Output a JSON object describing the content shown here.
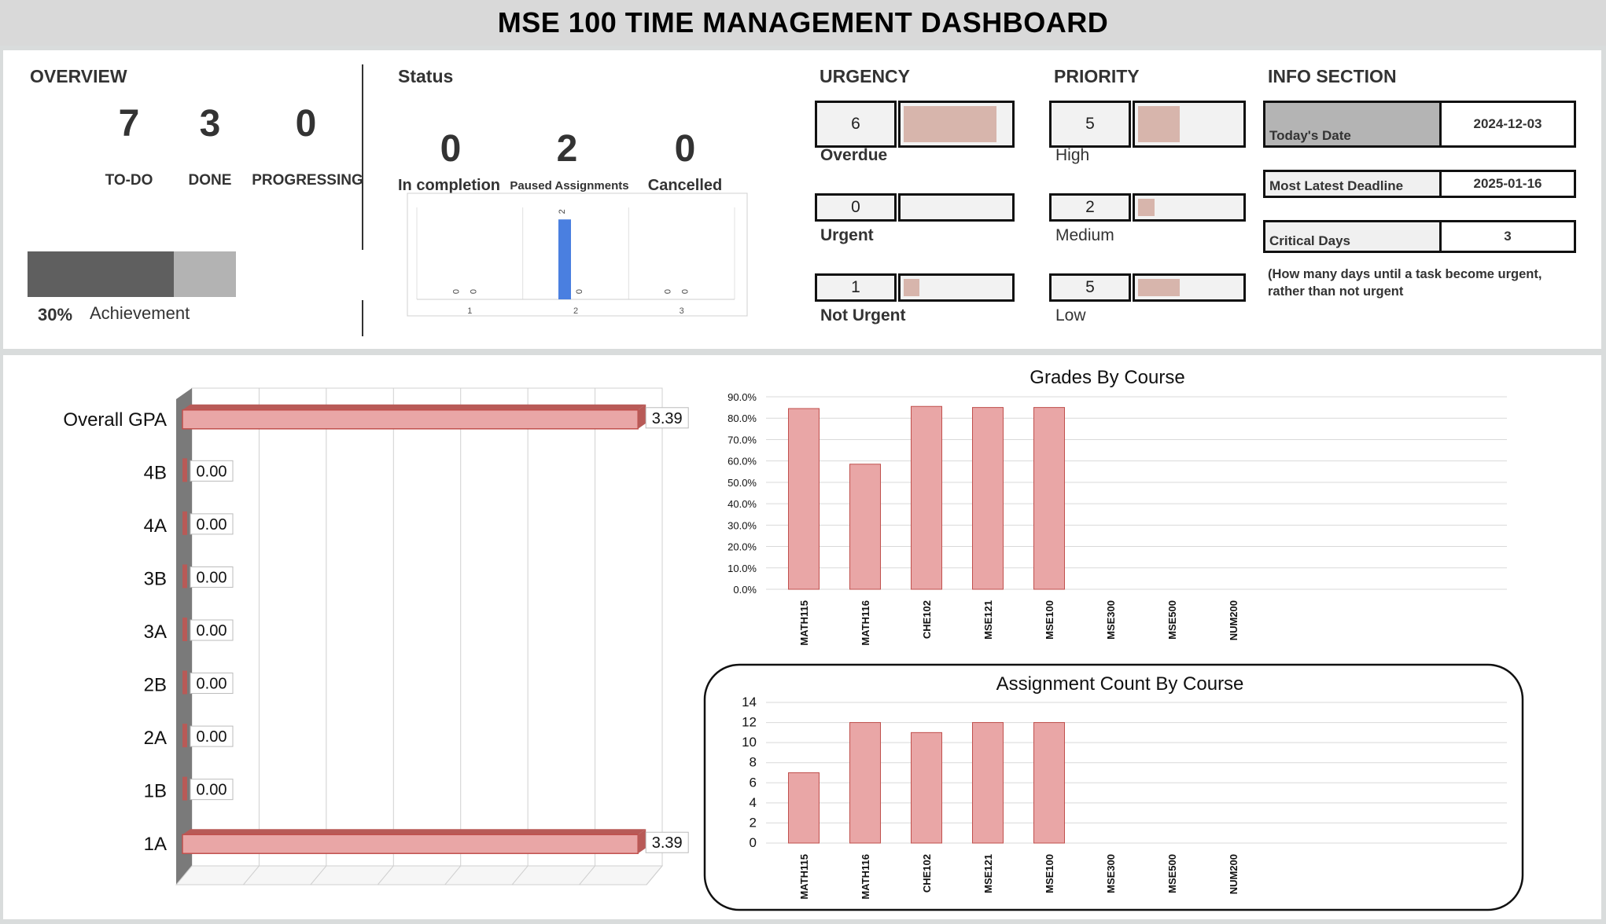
{
  "title": "MSE 100 TIME MANAGEMENT DASHBOARD",
  "overview": {
    "title": "OVERVIEW",
    "stats": [
      {
        "value": "7",
        "label": "TO-DO"
      },
      {
        "value": "3",
        "label": "DONE"
      },
      {
        "value": "0",
        "label": "PROGRESSING"
      }
    ],
    "achievement_percent": "30%",
    "achievement_fraction": 0.7,
    "achievement_label": "Achievement"
  },
  "status": {
    "title": "Status",
    "items": [
      {
        "value": "0",
        "label": "In completion"
      },
      {
        "value": "2",
        "label": "Paused Assignments"
      },
      {
        "value": "0",
        "label": "Cancelled"
      }
    ],
    "mini_chart": {
      "type": "bar",
      "categories": [
        "1",
        "2",
        "3"
      ],
      "series": [
        {
          "values": [
            0,
            2,
            0
          ]
        },
        {
          "values": [
            0,
            0,
            0
          ]
        }
      ],
      "data_labels": [
        [
          "0",
          "0"
        ],
        [
          "2",
          "0"
        ],
        [
          "0",
          "0"
        ]
      ]
    }
  },
  "urgency": {
    "title": "URGENCY",
    "items": [
      {
        "value": "6",
        "label": "Overdue",
        "fraction": 0.88
      },
      {
        "value": "0",
        "label": "Urgent",
        "fraction": 0
      },
      {
        "value": "1",
        "label": "Not Urgent",
        "fraction": 0.15
      }
    ]
  },
  "priority": {
    "title": "PRIORITY",
    "items": [
      {
        "value": "5",
        "label": "High",
        "fraction": 0.41
      },
      {
        "value": "2",
        "label": "Medium",
        "fraction": 0.16
      },
      {
        "value": "5",
        "label": "Low",
        "fraction": 0.41
      }
    ]
  },
  "info": {
    "title": "INFO SECTION",
    "todays_date_label": "Today's Date",
    "todays_date": "2024-12-03",
    "latest_deadline_label": "Most Latest Deadline",
    "latest_deadline": "2025-01-16",
    "critical_days_label": "Critical Days",
    "critical_days": "3",
    "note_line1": "(How many days until a task become urgent,",
    "note_line2": "rather than not urgent"
  },
  "colors": {
    "bar_pink": "#e9a6a6",
    "bar_border": "#c0504d",
    "status_bar": "#4a7fe0",
    "progress_dark": "#5f5f5f",
    "progress_light": "#b3b3b3"
  },
  "chart_data": [
    {
      "type": "bar",
      "orientation": "horizontal",
      "categories": [
        "Overall GPA",
        "4B",
        "4A",
        "3B",
        "3A",
        "2B",
        "2A",
        "1B",
        "1A"
      ],
      "values": [
        3.39,
        0.0,
        0.0,
        0.0,
        0.0,
        0.0,
        0.0,
        0.0,
        3.39
      ],
      "value_labels": [
        "3.39",
        "0.00",
        "0.00",
        "0.00",
        "0.00",
        "0.00",
        "0.00",
        "0.00",
        "3.39"
      ],
      "xlim": [
        0,
        3.5
      ],
      "grid": true
    },
    {
      "type": "bar",
      "title": "Grades By Course",
      "categories": [
        "MATH115",
        "MATH116",
        "CHE102",
        "MSE121",
        "MSE100",
        "MSE300",
        "MSE500",
        "NUM200"
      ],
      "values": [
        84.5,
        58.5,
        85.5,
        85.0,
        85.0,
        0,
        0,
        0
      ],
      "ylim": [
        0,
        90
      ],
      "yticks": [
        "0.0%",
        "10.0%",
        "20.0%",
        "30.0%",
        "40.0%",
        "50.0%",
        "60.0%",
        "70.0%",
        "80.0%",
        "90.0%"
      ],
      "grid": true
    },
    {
      "type": "bar",
      "title": "Assignment Count By Course",
      "categories": [
        "MATH115",
        "MATH116",
        "CHE102",
        "MSE121",
        "MSE100",
        "MSE300",
        "MSE500",
        "NUM200"
      ],
      "values": [
        7,
        12,
        11,
        12,
        12,
        0,
        0,
        0
      ],
      "ylim": [
        0,
        14
      ],
      "yticks": [
        "0",
        "2",
        "4",
        "6",
        "8",
        "10",
        "12",
        "14"
      ],
      "grid": true
    }
  ]
}
